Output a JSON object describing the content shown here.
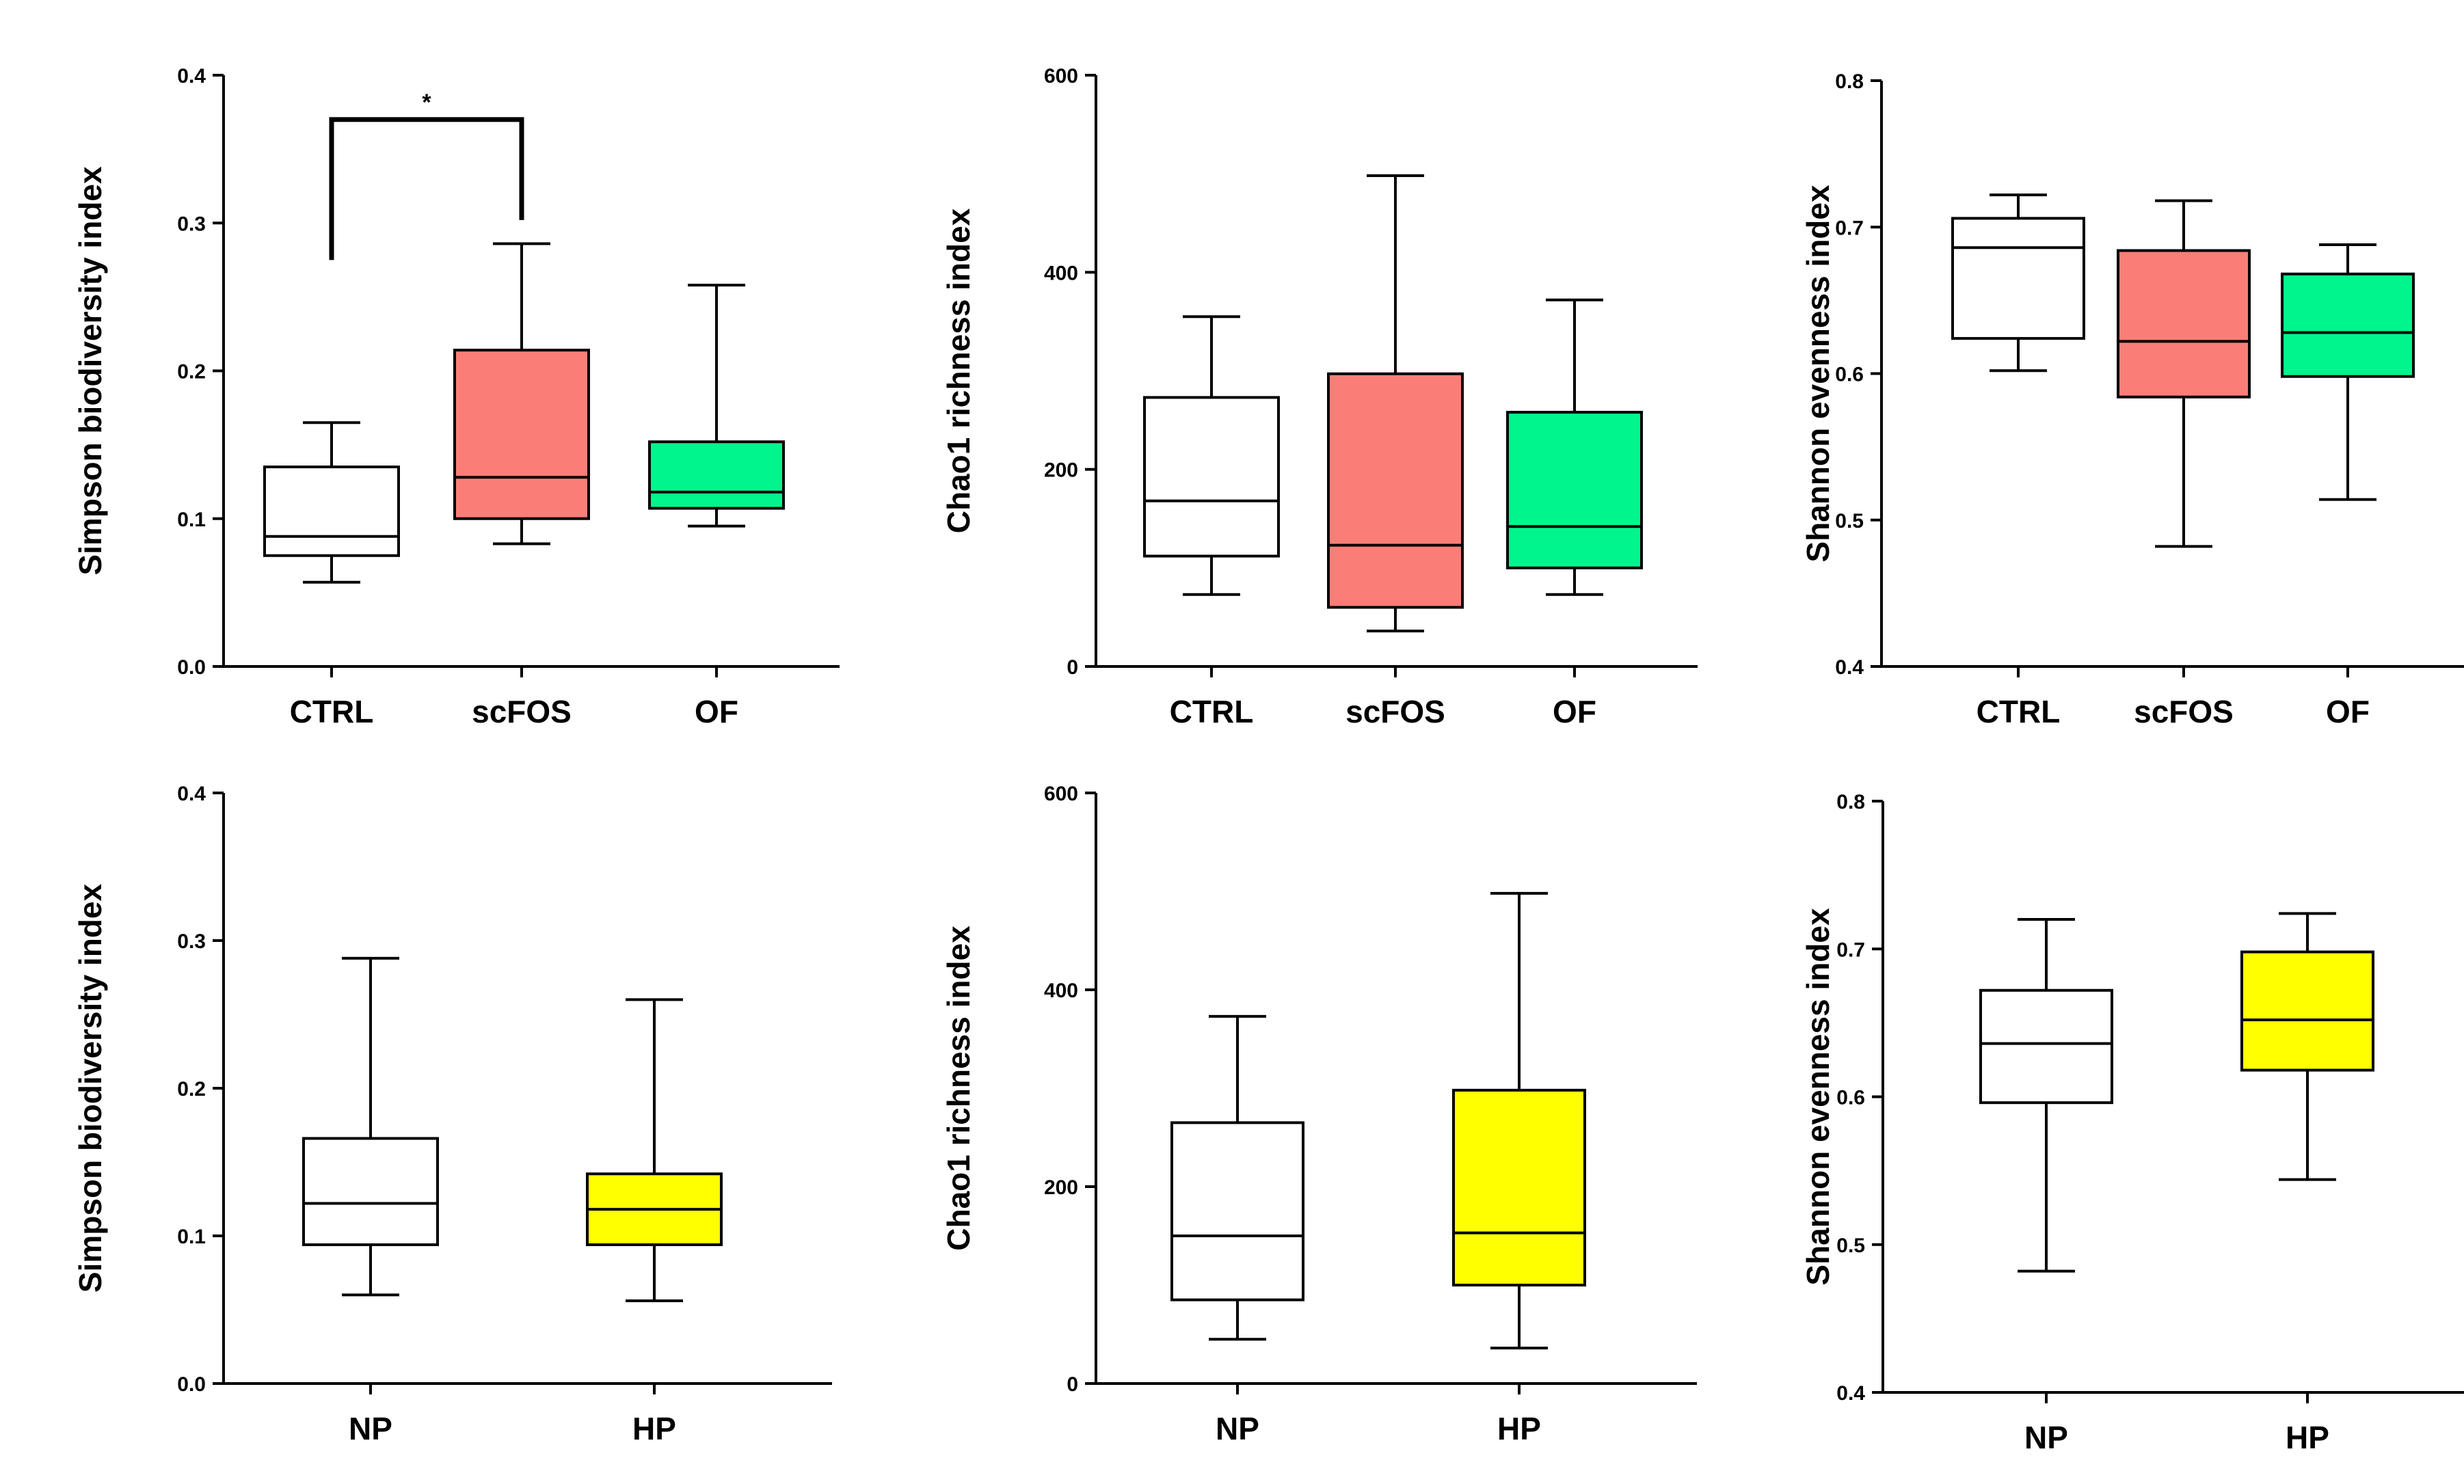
{
  "chart_data": [
    {
      "type": "boxplot",
      "ylabel": "Simpson biodiversity index",
      "ylim": [
        0.0,
        0.4
      ],
      "yticks": [
        "0.0",
        "0.1",
        "0.2",
        "0.3",
        "0.4"
      ],
      "categories": [
        "CTRL",
        "scFOS",
        "OF"
      ],
      "boxes": [
        {
          "name": "CTRL",
          "min": 0.057,
          "q1": 0.075,
          "median": 0.088,
          "q3": 0.135,
          "max": 0.165,
          "color": "#ffffff"
        },
        {
          "name": "scFOS",
          "min": 0.083,
          "q1": 0.1,
          "median": 0.128,
          "q3": 0.214,
          "max": 0.286,
          "color": "#fa7e77"
        },
        {
          "name": "OF",
          "min": 0.095,
          "q1": 0.107,
          "median": 0.118,
          "q3": 0.152,
          "max": 0.258,
          "color": "#00f58c"
        }
      ],
      "significance": {
        "from": "CTRL",
        "to": "scFOS",
        "label": "*",
        "y": 0.37,
        "left_drop": 0.275,
        "right_drop": 0.302
      }
    },
    {
      "type": "boxplot",
      "ylabel": "Chao1 richness index",
      "ylim": [
        0,
        600
      ],
      "yticks": [
        "0",
        "200",
        "400",
        "600"
      ],
      "categories": [
        "CTRL",
        "scFOS",
        "OF"
      ],
      "boxes": [
        {
          "name": "CTRL",
          "min": 73,
          "q1": 112,
          "median": 168,
          "q3": 273,
          "max": 355,
          "color": "#ffffff"
        },
        {
          "name": "scFOS",
          "min": 36,
          "q1": 60,
          "median": 123,
          "q3": 297,
          "max": 498,
          "color": "#fa7e77"
        },
        {
          "name": "OF",
          "min": 73,
          "q1": 100,
          "median": 142,
          "q3": 258,
          "max": 372,
          "color": "#00f58c"
        }
      ]
    },
    {
      "type": "boxplot",
      "ylabel": "Shannon evenness index",
      "ylim": [
        0.4,
        0.8
      ],
      "yticks": [
        "0.4",
        "0.5",
        "0.6",
        "0.7",
        "0.8"
      ],
      "categories": [
        "CTRL",
        "scFOS",
        "OF"
      ],
      "boxes": [
        {
          "name": "CTRL",
          "min": 0.602,
          "q1": 0.624,
          "median": 0.686,
          "q3": 0.706,
          "max": 0.722,
          "color": "#ffffff"
        },
        {
          "name": "scFOS",
          "min": 0.482,
          "q1": 0.584,
          "median": 0.622,
          "q3": 0.684,
          "max": 0.718,
          "color": "#fa7e77"
        },
        {
          "name": "OF",
          "min": 0.514,
          "q1": 0.598,
          "median": 0.628,
          "q3": 0.668,
          "max": 0.688,
          "color": "#00f58c"
        }
      ]
    },
    {
      "type": "boxplot",
      "ylabel": "Simpson biodiversity index",
      "ylim": [
        0.0,
        0.4
      ],
      "yticks": [
        "0.0",
        "0.1",
        "0.2",
        "0.3",
        "0.4"
      ],
      "categories": [
        "NP",
        "HP"
      ],
      "boxes": [
        {
          "name": "NP",
          "min": 0.06,
          "q1": 0.094,
          "median": 0.122,
          "q3": 0.166,
          "max": 0.288,
          "color": "#ffffff"
        },
        {
          "name": "HP",
          "min": 0.056,
          "q1": 0.094,
          "median": 0.118,
          "q3": 0.142,
          "max": 0.26,
          "color": "#ffff00"
        }
      ]
    },
    {
      "type": "boxplot",
      "ylabel": "Chao1 richness index",
      "ylim": [
        0,
        600
      ],
      "yticks": [
        "0",
        "200",
        "400",
        "600"
      ],
      "categories": [
        "NP",
        "HP"
      ],
      "boxes": [
        {
          "name": "NP",
          "min": 45,
          "q1": 85,
          "median": 150,
          "q3": 265,
          "max": 373,
          "color": "#ffffff"
        },
        {
          "name": "HP",
          "min": 36,
          "q1": 100,
          "median": 153,
          "q3": 298,
          "max": 498,
          "color": "#ffff00"
        }
      ]
    },
    {
      "type": "boxplot",
      "ylabel": "Shannon evenness index",
      "ylim": [
        0.4,
        0.8
      ],
      "yticks": [
        "0.4",
        "0.5",
        "0.6",
        "0.7",
        "0.8"
      ],
      "categories": [
        "NP",
        "HP"
      ],
      "boxes": [
        {
          "name": "NP",
          "min": 0.482,
          "q1": 0.596,
          "median": 0.636,
          "q3": 0.672,
          "max": 0.72,
          "color": "#ffffff"
        },
        {
          "name": "HP",
          "min": 0.544,
          "q1": 0.618,
          "median": 0.652,
          "q3": 0.698,
          "max": 0.724,
          "color": "#ffff00"
        }
      ]
    }
  ]
}
